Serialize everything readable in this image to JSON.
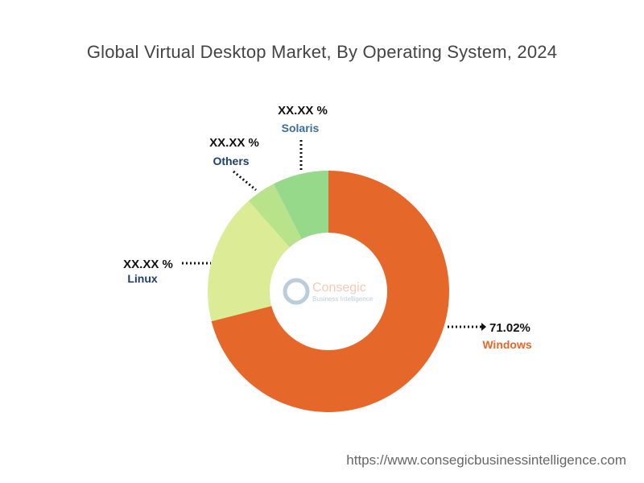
{
  "chart_data": {
    "type": "pie",
    "variant": "donut",
    "title": "Global Virtual Desktop Market, By Operating System, 2024",
    "categories": [
      "Windows",
      "Linux",
      "Others",
      "Solaris"
    ],
    "values": [
      71.02,
      17.48,
      4.0,
      7.5
    ],
    "data_labels": [
      "71.02%",
      "XX.XX %",
      "XX.XX %",
      "XX.XX %"
    ],
    "colors": [
      "#E5672A",
      "#DCEB96",
      "#B8E38A",
      "#96D98A"
    ],
    "label_colors": [
      "#E5672A",
      "#1F3E6E",
      "#1F3E6E",
      "#3D6E99"
    ],
    "legend": "none"
  },
  "watermark": {
    "brand": "Consegic",
    "tagline": "Business Intelligence"
  },
  "footer": {
    "url": "https://www.consegicbusinessintelligence.com"
  }
}
